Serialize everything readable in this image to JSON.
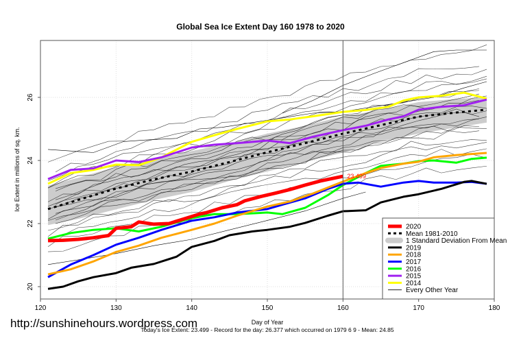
{
  "chart_data": {
    "type": "line",
    "title": "Global Sea Ice Extent Day 160 1978 to 2020",
    "xlabel": "Day of Year",
    "ylabel": "Ice Extent in millions of sq. km.",
    "xlim": [
      120,
      180
    ],
    "ylim": [
      19.8,
      27.7
    ],
    "xticks": [
      120,
      130,
      140,
      150,
      160,
      170,
      180
    ],
    "yticks": [
      20,
      22,
      24,
      26
    ],
    "grid": true,
    "vline_day": 160,
    "legend_position": "bottom-right",
    "annotation": {
      "text": "23.499",
      "day": 160,
      "value": 23.499
    },
    "source_url": "http://sunshinehours.wordpress.com",
    "footer": "Today's Ice Extent: 23.499  - Record for the day: 26.377 which occurred on 1979 6 9  - Mean: 24.85",
    "series": [
      {
        "name": "2020",
        "color": "#ff0000",
        "width": 5,
        "style": "solid",
        "x": [
          121,
          123,
          125,
          127,
          129,
          130,
          132,
          133,
          135,
          137,
          139,
          141,
          142,
          144,
          146,
          147,
          149,
          151,
          153,
          155,
          157,
          160
        ],
        "values": [
          21.46,
          21.47,
          21.5,
          21.55,
          21.62,
          21.85,
          21.9,
          22.05,
          21.98,
          22.0,
          22.15,
          22.3,
          22.35,
          22.5,
          22.6,
          22.72,
          22.85,
          22.96,
          23.08,
          23.22,
          23.35,
          23.499
        ]
      },
      {
        "name": "Mean 1981-2010",
        "color": "#000000",
        "width": 3,
        "style": "dashed",
        "x": [
          121,
          125,
          130,
          135,
          140,
          145,
          150,
          155,
          160,
          165,
          170,
          175,
          179
        ],
        "values": [
          22.46,
          22.75,
          23.11,
          23.4,
          23.65,
          23.95,
          24.26,
          24.55,
          24.85,
          25.12,
          25.39,
          25.52,
          25.61
        ]
      },
      {
        "name": "2019",
        "color": "#000000",
        "width": 3,
        "style": "solid",
        "x": [
          121,
          123,
          125,
          127,
          130,
          132,
          135,
          138,
          140,
          143,
          145,
          148,
          150,
          153,
          155,
          158,
          160,
          163,
          165,
          168,
          170,
          173,
          176,
          177,
          179
        ],
        "values": [
          19.93,
          20.0,
          20.17,
          20.3,
          20.43,
          20.6,
          20.72,
          20.95,
          21.26,
          21.45,
          21.63,
          21.75,
          21.8,
          21.9,
          22.02,
          22.25,
          22.39,
          22.42,
          22.67,
          22.85,
          22.93,
          23.1,
          23.32,
          23.35,
          23.26
        ]
      },
      {
        "name": "2018",
        "color": "#ffa500",
        "width": 3,
        "style": "solid",
        "x": [
          121,
          124,
          127,
          130,
          133,
          136,
          140,
          143,
          146,
          150,
          153,
          156,
          160,
          163,
          165,
          168,
          170,
          172,
          175,
          179
        ],
        "values": [
          20.39,
          20.55,
          20.8,
          21.1,
          21.3,
          21.55,
          21.8,
          22.0,
          22.25,
          22.54,
          22.7,
          22.95,
          23.33,
          23.6,
          23.76,
          23.9,
          23.96,
          24.1,
          24.17,
          24.24
        ]
      },
      {
        "name": "2017",
        "color": "#0000ff",
        "width": 3,
        "style": "solid",
        "x": [
          121,
          124,
          127,
          130,
          133,
          136,
          140,
          143,
          146,
          150,
          152,
          155,
          158,
          160,
          162,
          165,
          168,
          170,
          172,
          175,
          177,
          179
        ],
        "values": [
          20.3,
          20.7,
          21.0,
          21.33,
          21.55,
          21.8,
          22.09,
          22.2,
          22.35,
          22.46,
          22.6,
          22.8,
          23.1,
          23.26,
          23.3,
          23.17,
          23.3,
          23.35,
          23.3,
          23.3,
          23.32,
          23.26
        ]
      },
      {
        "name": "2016",
        "color": "#00ff00",
        "width": 3,
        "style": "solid",
        "x": [
          121,
          124,
          127,
          130,
          133,
          136,
          140,
          143,
          146,
          150,
          152,
          155,
          158,
          160,
          163,
          165,
          168,
          170,
          172,
          175,
          177,
          179
        ],
        "values": [
          21.52,
          21.7,
          21.8,
          21.85,
          21.75,
          21.9,
          22.17,
          22.3,
          22.3,
          22.35,
          22.3,
          22.5,
          22.9,
          23.22,
          23.6,
          23.83,
          23.9,
          23.98,
          24.0,
          23.93,
          24.05,
          24.09
        ]
      },
      {
        "name": "2015",
        "color": "#a020f0",
        "width": 3,
        "style": "solid",
        "x": [
          121,
          124,
          127,
          130,
          133,
          136,
          140,
          143,
          146,
          150,
          153,
          156,
          160,
          163,
          166,
          168,
          170,
          173,
          176,
          179
        ],
        "values": [
          23.41,
          23.7,
          23.75,
          24.0,
          23.95,
          24.1,
          24.41,
          24.5,
          24.55,
          24.63,
          24.55,
          24.75,
          24.96,
          25.1,
          25.3,
          25.4,
          25.61,
          25.7,
          25.75,
          25.93
        ]
      },
      {
        "name": "2014",
        "color": "#ffff00",
        "width": 3,
        "style": "solid",
        "x": [
          121,
          124,
          127,
          130,
          133,
          136,
          140,
          143,
          146,
          150,
          153,
          156,
          160,
          163,
          166,
          168,
          170,
          173,
          176,
          179
        ],
        "values": [
          23.26,
          23.6,
          23.7,
          23.87,
          23.85,
          24.1,
          24.59,
          24.8,
          25.0,
          25.24,
          25.3,
          25.4,
          25.54,
          25.6,
          25.7,
          25.9,
          26.0,
          26.05,
          26.15,
          25.96
        ]
      }
    ],
    "std_band": {
      "name": "1 Standard Deviation From Mean",
      "color": "#cccccc",
      "x": [
        121,
        125,
        130,
        135,
        140,
        145,
        150,
        155,
        160,
        165,
        170,
        175,
        179
      ],
      "upper": [
        23.2,
        23.45,
        23.8,
        24.05,
        24.3,
        24.55,
        24.85,
        25.1,
        25.4,
        25.6,
        25.85,
        25.95,
        26.0
      ],
      "lower": [
        21.95,
        22.15,
        22.45,
        22.75,
        23.0,
        23.35,
        23.65,
        23.95,
        24.25,
        24.6,
        24.85,
        25.05,
        25.2
      ]
    },
    "other_years": {
      "name": "Every Other Year",
      "color": "#000000"
    },
    "legend": [
      "2020",
      "Mean 1981-2010",
      "1 Standard Deviation From Mean",
      "2019",
      "2018",
      "2017",
      "2016",
      "2015",
      "2014",
      "Every Other Year"
    ]
  }
}
